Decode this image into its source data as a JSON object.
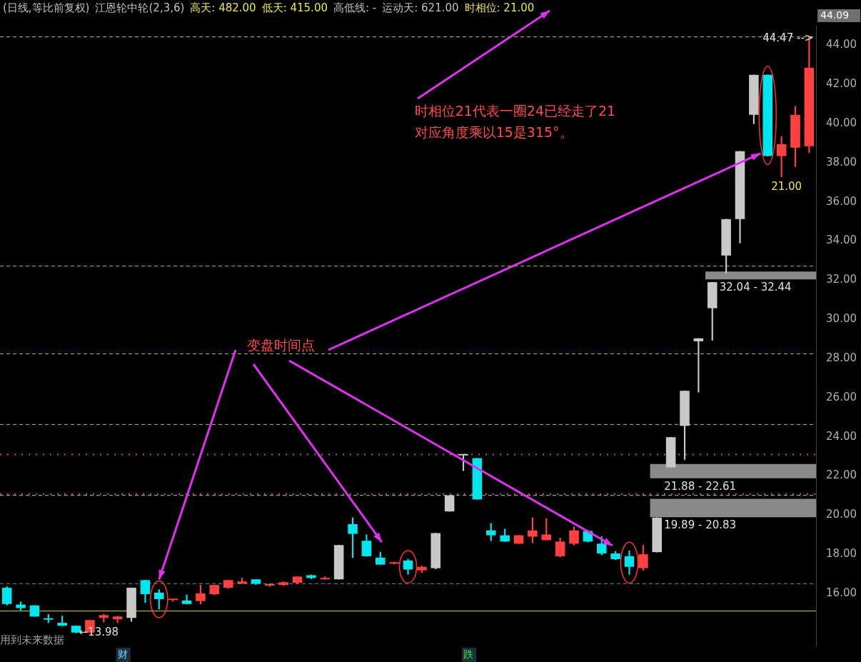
{
  "chart_data": {
    "type": "candlestick",
    "title": "(日线,等比前复权)",
    "categories": [
      null,
      null,
      null,
      null,
      null,
      null,
      null,
      null,
      null,
      null,
      null,
      null,
      null,
      null,
      null,
      null,
      null,
      null,
      null,
      null,
      null,
      null,
      null,
      null,
      null,
      null,
      null,
      null,
      null,
      null,
      null,
      null,
      null,
      null,
      null,
      null,
      null,
      null,
      null,
      null,
      null,
      null,
      null,
      null,
      null,
      null,
      null,
      null,
      null,
      null,
      null,
      null,
      null,
      null,
      null,
      null,
      null,
      null,
      null
    ],
    "ohlc": [
      [
        16.29,
        16.35,
        15.4,
        15.46
      ],
      [
        15.43,
        15.57,
        15.14,
        15.25
      ],
      [
        15.39,
        15.39,
        14.82,
        14.82
      ],
      [
        14.68,
        14.93,
        14.5,
        14.66
      ],
      [
        14.5,
        14.85,
        14.35,
        14.35
      ],
      [
        14.35,
        14.35,
        13.98,
        14.0
      ],
      [
        14.0,
        14.64,
        14.0,
        14.64
      ],
      [
        14.75,
        14.93,
        14.53,
        14.89
      ],
      [
        14.68,
        14.85,
        14.5,
        14.82
      ],
      [
        14.75,
        16.29,
        14.57,
        16.29
      ],
      [
        16.68,
        16.68,
        15.53,
        15.96
      ],
      [
        16.04,
        16.2,
        15.2,
        15.71
      ],
      [
        15.66,
        15.72,
        15.6,
        15.7
      ],
      [
        15.64,
        15.93,
        15.46,
        15.46
      ],
      [
        15.61,
        16.43,
        15.46,
        16.0
      ],
      [
        15.96,
        16.43,
        15.93,
        16.43
      ],
      [
        16.29,
        16.68,
        16.25,
        16.68
      ],
      [
        16.5,
        16.79,
        16.5,
        16.61
      ],
      [
        16.72,
        16.72,
        16.45,
        16.5
      ],
      [
        16.4,
        16.5,
        16.36,
        16.45
      ],
      [
        16.43,
        16.6,
        16.4,
        16.57
      ],
      [
        16.54,
        16.86,
        16.5,
        16.86
      ],
      [
        16.93,
        16.95,
        16.75,
        16.79
      ],
      [
        16.72,
        16.86,
        16.72,
        16.79
      ],
      [
        16.72,
        18.47,
        16.72,
        18.47
      ],
      [
        19.54,
        19.87,
        17.83,
        19.04
      ],
      [
        18.69,
        19.0,
        17.9,
        17.9
      ],
      [
        17.83,
        18.11,
        17.47,
        17.47
      ],
      [
        17.52,
        17.6,
        17.5,
        17.56
      ],
      [
        17.68,
        17.75,
        16.97,
        17.22
      ],
      [
        17.18,
        17.4,
        17.07,
        17.36
      ],
      [
        17.29,
        19.08,
        17.25,
        19.08
      ],
      [
        20.19,
        21.01,
        20.19,
        21.01
      ],
      [
        23.05,
        23.05,
        22.27,
        23.05
      ],
      [
        22.91,
        22.91,
        20.8,
        20.8
      ],
      [
        19.22,
        19.58,
        18.69,
        18.97
      ],
      [
        18.97,
        19.29,
        18.65,
        18.65
      ],
      [
        18.54,
        18.97,
        18.54,
        18.97
      ],
      [
        18.9,
        19.87,
        18.58,
        19.22
      ],
      [
        18.72,
        19.83,
        18.72,
        19.01
      ],
      [
        17.9,
        18.83,
        17.86,
        18.65
      ],
      [
        18.54,
        19.4,
        18.47,
        19.22
      ],
      [
        19.19,
        19.22,
        18.62,
        18.65
      ],
      [
        18.54,
        18.9,
        17.97,
        18.04
      ],
      [
        18.04,
        18.15,
        17.72,
        17.75
      ],
      [
        17.9,
        18.18,
        16.97,
        17.36
      ],
      [
        17.29,
        18.47,
        17.18,
        18.0
      ],
      [
        18.11,
        19.87,
        18.11,
        19.87
      ],
      [
        22.44,
        23.98,
        22.44,
        23.98
      ],
      [
        24.56,
        26.35,
        22.84,
        26.35
      ],
      [
        28.88,
        29.03,
        26.28,
        29.03
      ],
      [
        30.57,
        31.9,
        28.93,
        31.9
      ],
      [
        33.26,
        35.12,
        32.36,
        35.12
      ],
      [
        35.12,
        38.59,
        33.9,
        38.59
      ],
      [
        40.45,
        42.49,
        39.99,
        42.49
      ],
      [
        42.49,
        42.49,
        38.34,
        38.34
      ],
      [
        38.34,
        39.34,
        37.27,
        38.95
      ],
      [
        38.77,
        40.88,
        37.8,
        40.45
      ],
      [
        38.84,
        44.47,
        38.52,
        42.85
      ]
    ],
    "colors": [
      "#00e5ee",
      "#00e5ee",
      "#00e5ee",
      "#00e5ee",
      "#00e5ee",
      "#00e5ee",
      "#ff4040",
      "#ff4040",
      "#ff4040",
      "#c8c8c8",
      "#00e5ee",
      "#00e5ee",
      "#ff4040",
      "#00e5ee",
      "#ff4040",
      "#ff4040",
      "#ff4040",
      "#ff4040",
      "#00e5ee",
      "#ff4040",
      "#ff4040",
      "#ff4040",
      "#00e5ee",
      "#ff4040",
      "#c8c8c8",
      "#00e5ee",
      "#00e5ee",
      "#00e5ee",
      "#ff4040",
      "#00e5ee",
      "#ff4040",
      "#c8c8c8",
      "#c8c8c8",
      "#c8c8c8",
      "#00e5ee",
      "#00e5ee",
      "#00e5ee",
      "#ff4040",
      "#ff4040",
      "#ff4040",
      "#ff4040",
      "#ff4040",
      "#00e5ee",
      "#00e5ee",
      "#00e5ee",
      "#00e5ee",
      "#ff4040",
      "#c8c8c8",
      "#c8c8c8",
      "#c8c8c8",
      "#c8c8c8",
      "#c8c8c8",
      "#c8c8c8",
      "#c8c8c8",
      "#c8c8c8",
      "#00e5ee",
      "#ff4040",
      "#ff4040",
      "#ff4040"
    ],
    "ylim": [
      13.3,
      45.0
    ],
    "yticks": [
      {
        "value": 16,
        "label": "16.00"
      },
      {
        "value": 18,
        "label": "18.00"
      },
      {
        "value": 20,
        "label": "20.00"
      },
      {
        "value": 22,
        "label": "22.00"
      },
      {
        "value": 24,
        "label": "24.00"
      },
      {
        "value": 26,
        "label": "26.00"
      },
      {
        "value": 28,
        "label": "28.00"
      },
      {
        "value": 30,
        "label": "30.00"
      },
      {
        "value": 32,
        "label": "32.00"
      },
      {
        "value": 34,
        "label": "34.00"
      },
      {
        "value": 36,
        "label": "36.00"
      },
      {
        "value": 38,
        "label": "38.00"
      },
      {
        "value": 40,
        "label": "40.00"
      },
      {
        "value": 42,
        "label": "42.00"
      },
      {
        "value": 44,
        "label": "44.00"
      }
    ],
    "grid": false,
    "legend": false,
    "ref_lines": [
      {
        "axis": "y",
        "value": 15.1,
        "color": "#d8d820",
        "line_style": "solid"
      },
      {
        "axis": "y",
        "value": 16.5,
        "color": "#2aa7b8",
        "line_style": "dashed"
      },
      {
        "axis": "y",
        "value": 21.01,
        "color": "#c8c830",
        "line_style": "dashed"
      },
      {
        "axis": "y",
        "value": 21.08,
        "color": "#c040c0",
        "line_style": "dotted"
      },
      {
        "axis": "y",
        "value": 23.09,
        "color": "#c040c0",
        "line_style": "dotted"
      },
      {
        "axis": "y",
        "value": 24.63,
        "color": "#a8c830",
        "line_style": "dashed"
      },
      {
        "axis": "y",
        "value": 28.24,
        "color": "#a8c830",
        "line_style": "dashed"
      },
      {
        "axis": "y",
        "value": 32.72,
        "color": "#a8c830",
        "line_style": "dashed"
      },
      {
        "axis": "y",
        "value": 44.43,
        "color": "#c8c830",
        "line_style": "dashed"
      }
    ],
    "bands": [
      {
        "axis": "y",
        "from": 19.89,
        "to": 20.83,
        "label": "19.89 - 20.83",
        "color": "#8a8a8a"
      },
      {
        "axis": "y",
        "from": 21.88,
        "to": 22.61,
        "label": "21.88 - 22.61",
        "color": "#8a8a8a"
      },
      {
        "axis": "y",
        "from": 32.04,
        "to": 32.44,
        "label": "32.04 - 32.44",
        "color": "#8a8a8a"
      }
    ],
    "annotations": [
      "江恩轮中轮(2,3,6)",
      "高天: 482.00",
      "低天: 415.00",
      "高低线: -",
      "运动天: 621.00",
      "时相位: 21.00",
      "时相位21代表一圈24已经走了21",
      "对应角度乘以15是315°。",
      "变盘时间点",
      "21.00",
      {
        "text": "44.47 -->",
        "y": 44.47
      },
      "←13.98",
      "用到未来数据",
      "财",
      "跌",
      "44.09"
    ]
  }
}
